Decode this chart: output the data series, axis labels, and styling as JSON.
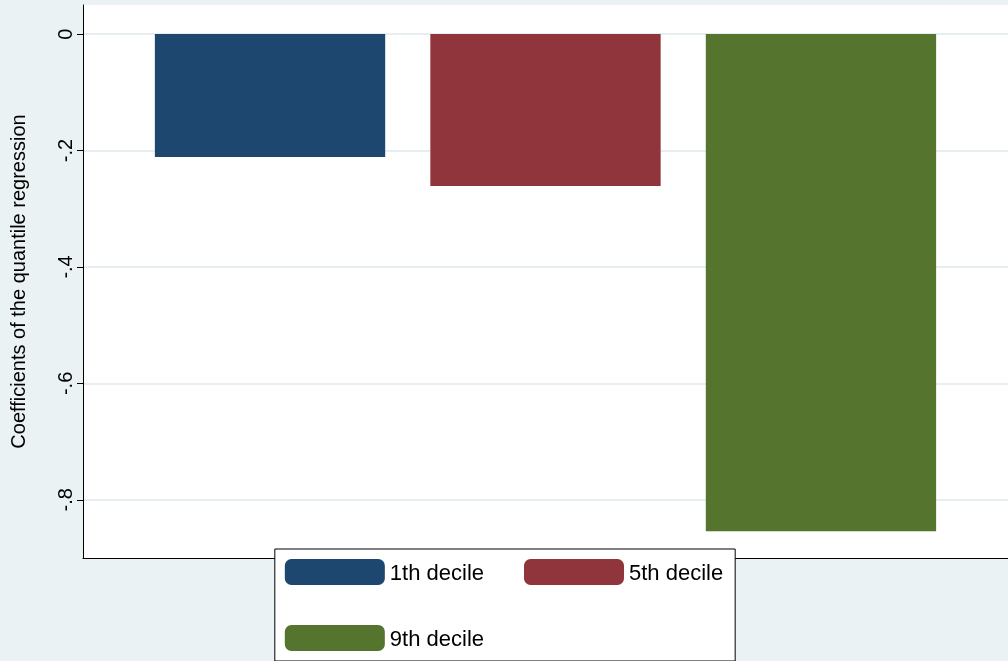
{
  "chart_data": {
    "type": "bar",
    "ylabel": "Coefficients of the quantile regression",
    "categories": [
      null
    ],
    "series": [
      {
        "name": "1th decile",
        "color": "#1d476e",
        "values": [
          -0.211
        ]
      },
      {
        "name": "5th decile",
        "color": "#90353b",
        "values": [
          -0.261
        ]
      },
      {
        "name": "9th decile",
        "color": "#55752f",
        "values": [
          -0.854
        ]
      }
    ],
    "ylim": [
      -0.9,
      0.05
    ],
    "yticks": [
      {
        "value": -0.8,
        "label": "-.8"
      },
      {
        "value": -0.6,
        "label": "-.6"
      },
      {
        "value": -0.4,
        "label": "-.4"
      },
      {
        "value": -0.2,
        "label": "-.2"
      },
      0
    ],
    "grid": "y",
    "legend": "bottom"
  }
}
